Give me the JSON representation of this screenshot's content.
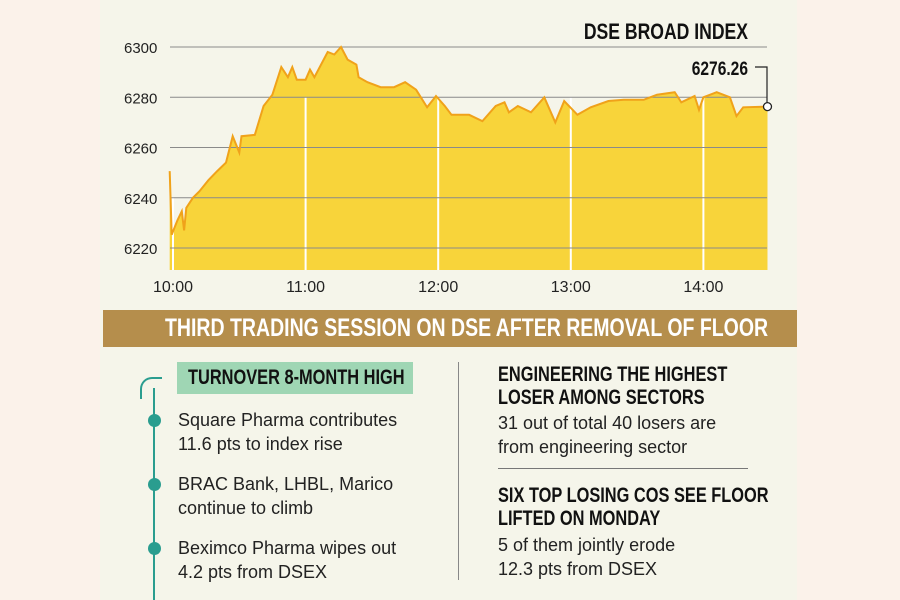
{
  "chart_data": {
    "type": "area",
    "title": "DSE BROAD INDEX",
    "last_value_label": "6276.26",
    "xlabel": "",
    "ylabel": "",
    "ylim": [
      6210,
      6300
    ],
    "yticks": [
      6220,
      6240,
      6260,
      6280,
      6300
    ],
    "ytick_labels": [
      "6220",
      "6240",
      "6260",
      "6280",
      "6300"
    ],
    "xticks_minutes": [
      0,
      60,
      120,
      180,
      240
    ],
    "xtick_labels": [
      "10:00",
      "11:00",
      "12:00",
      "13:00",
      "14:00"
    ],
    "xlim_minutes": [
      -1.5,
      269
    ],
    "grid": true,
    "line_color": "#f0a21a",
    "fill_color": "#f8d43a",
    "points": [
      [
        -1.5,
        6250.6
      ],
      [
        -0.6,
        6225.3
      ],
      [
        2,
        6231
      ],
      [
        4,
        6234.6
      ],
      [
        5,
        6227
      ],
      [
        6,
        6236
      ],
      [
        9,
        6240
      ],
      [
        12,
        6242.6
      ],
      [
        16,
        6247
      ],
      [
        20,
        6250.6
      ],
      [
        24,
        6254
      ],
      [
        27,
        6264.5
      ],
      [
        30,
        6258
      ],
      [
        31,
        6264.5
      ],
      [
        37,
        6265
      ],
      [
        41,
        6276.5
      ],
      [
        45,
        6281
      ],
      [
        49,
        6292
      ],
      [
        52,
        6288
      ],
      [
        54,
        6292
      ],
      [
        56,
        6287
      ],
      [
        60,
        6287
      ],
      [
        62,
        6291
      ],
      [
        64,
        6288
      ],
      [
        70,
        6298
      ],
      [
        73,
        6297
      ],
      [
        76,
        6300
      ],
      [
        79,
        6295
      ],
      [
        83,
        6293
      ],
      [
        84,
        6288
      ],
      [
        88,
        6286
      ],
      [
        94,
        6284
      ],
      [
        100,
        6284
      ],
      [
        105,
        6286
      ],
      [
        110,
        6283
      ],
      [
        115,
        6276
      ],
      [
        119,
        6280.5
      ],
      [
        123,
        6276.5
      ],
      [
        126,
        6273
      ],
      [
        134,
        6273
      ],
      [
        140,
        6270.5
      ],
      [
        146,
        6276.5
      ],
      [
        150,
        6278
      ],
      [
        152,
        6274
      ],
      [
        156,
        6276.5
      ],
      [
        162,
        6274
      ],
      [
        168,
        6280
      ],
      [
        173,
        6270
      ],
      [
        177,
        6278.5
      ],
      [
        183,
        6273
      ],
      [
        189,
        6276
      ],
      [
        197,
        6278.5
      ],
      [
        204,
        6279
      ],
      [
        213,
        6279
      ],
      [
        219,
        6281
      ],
      [
        227,
        6282
      ],
      [
        230,
        6278
      ],
      [
        236,
        6280.5
      ],
      [
        238,
        6275
      ],
      [
        240,
        6280
      ],
      [
        246,
        6282
      ],
      [
        252,
        6280
      ],
      [
        255,
        6272.5
      ],
      [
        258,
        6276
      ],
      [
        269,
        6276.26
      ]
    ]
  },
  "banner": "THIRD TRADING SESSION ON DSE AFTER REMOVAL OF FLOOR",
  "left": {
    "tag": "TURNOVER 8-MONTH HIGH",
    "items": [
      {
        "line1": "Square Pharma contributes",
        "line2": "11.6 pts to index rise"
      },
      {
        "line1": "BRAC Bank, LHBL, Marico",
        "line2": "continue to climb"
      },
      {
        "line1": "Beximco Pharma wipes out",
        "line2": "4.2 pts from DSEX"
      }
    ]
  },
  "right": [
    {
      "h1": "ENGINEERING THE HIGHEST",
      "h2": "LOSER AMONG SECTORS",
      "t1": "31 out of total 40 losers are",
      "t2": "from engineering sector"
    },
    {
      "h1": "SIX TOP LOSING COS SEE FLOOR",
      "h2": "LIFTED ON MONDAY",
      "t1": "5 of them jointly erode",
      "t2": "12.3 pts from DSEX"
    }
  ]
}
